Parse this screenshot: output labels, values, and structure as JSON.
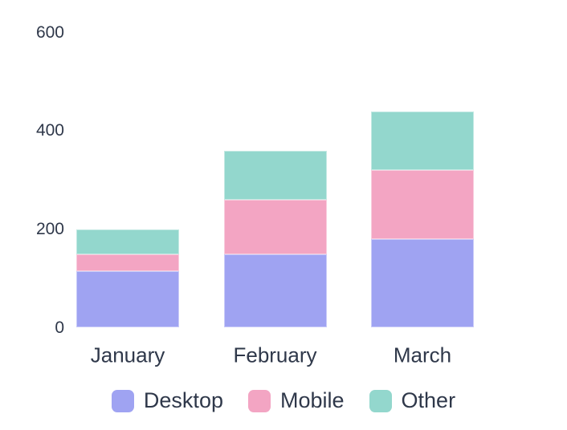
{
  "chart_data": {
    "type": "bar",
    "stacked": true,
    "title": "",
    "xlabel": "",
    "ylabel": "",
    "categories": [
      "January",
      "February",
      "March"
    ],
    "series": [
      {
        "name": "Desktop",
        "color": "#9fa3f2",
        "values": [
          115,
          150,
          180
        ]
      },
      {
        "name": "Mobile",
        "color": "#f3a5c3",
        "values": [
          35,
          110,
          140
        ]
      },
      {
        "name": "Other",
        "color": "#93d7cd",
        "values": [
          50,
          100,
          120
        ]
      }
    ],
    "ylim": [
      0,
      600
    ],
    "yticks": [
      600,
      400,
      200,
      0
    ],
    "grid": false,
    "axis_lines": false,
    "legend_position": "bottom"
  },
  "colors": {
    "background": "#ffffff",
    "text": "#2f384a"
  }
}
